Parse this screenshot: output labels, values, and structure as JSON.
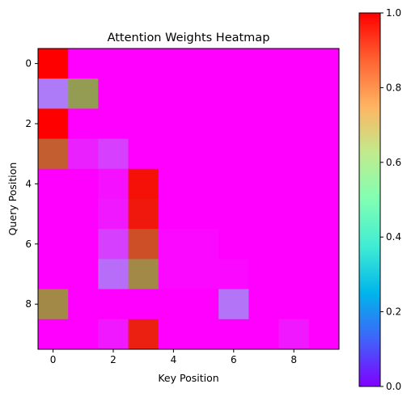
{
  "chart_data": {
    "type": "heatmap",
    "title": "Attention Weights Heatmap",
    "xlabel": "Key Position",
    "ylabel": "Query Position",
    "x_ticks": [
      0,
      2,
      4,
      6,
      8
    ],
    "y_ticks": [
      0,
      2,
      4,
      6,
      8
    ],
    "colorbar": {
      "colormap": "rainbow",
      "range": [
        0,
        1
      ],
      "ticks": [
        "0.0",
        "0.2",
        "0.4",
        "0.6",
        "0.8",
        "1.0"
      ]
    },
    "matrix": [
      [
        1.0,
        0.0,
        0.0,
        0.0,
        0.0,
        0.0,
        0.0,
        0.0,
        0.0,
        0.0
      ],
      [
        0.16,
        0.79,
        0.0,
        0.0,
        0.0,
        0.0,
        0.0,
        0.0,
        0.0,
        0.0
      ],
      [
        1.0,
        0.0,
        0.0,
        0.0,
        0.0,
        0.0,
        0.0,
        0.0,
        0.0,
        0.0
      ],
      [
        0.88,
        0.04,
        0.08,
        0.0,
        0.0,
        0.0,
        0.0,
        0.0,
        0.0,
        0.0
      ],
      [
        0.0,
        0.0,
        0.02,
        0.98,
        0.0,
        0.0,
        0.0,
        0.0,
        0.0,
        0.0
      ],
      [
        0.0,
        0.0,
        0.03,
        0.97,
        0.0,
        0.0,
        0.0,
        0.0,
        0.0,
        0.0
      ],
      [
        0.0,
        0.0,
        0.08,
        0.9,
        0.01,
        0.01,
        0.0,
        0.0,
        0.0,
        0.0
      ],
      [
        0.0,
        0.0,
        0.14,
        0.82,
        0.01,
        0.01,
        0.01,
        0.0,
        0.0,
        0.0
      ],
      [
        0.82,
        0.0,
        0.0,
        0.0,
        0.0,
        0.0,
        0.15,
        0.0,
        0.0,
        0.0
      ],
      [
        0.0,
        0.0,
        0.03,
        0.96,
        0.0,
        0.0,
        0.0,
        0.0,
        0.03,
        0.0
      ]
    ]
  }
}
